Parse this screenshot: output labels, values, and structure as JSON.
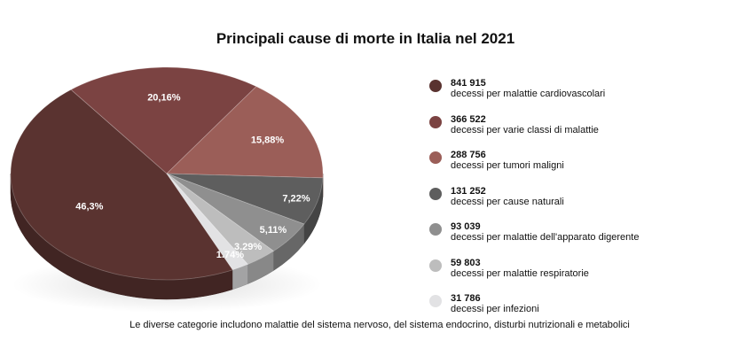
{
  "chart_data": {
    "type": "pie",
    "title": "Principali cause di morte in Italia nel 2021",
    "slices": [
      {
        "label": "46,3%",
        "value": 46.3,
        "color": "#5a3330",
        "count": "841 915",
        "description": "decessi per malattie cardiovascolari"
      },
      {
        "label": "20,16%",
        "value": 20.16,
        "color": "#7b4342",
        "count": "366 522",
        "description": "decessi per varie classi di malattie"
      },
      {
        "label": "15,88%",
        "value": 15.88,
        "color": "#9b5e58",
        "count": "288 756",
        "description": "decessi per tumori maligni"
      },
      {
        "label": "7,22%",
        "value": 7.22,
        "color": "#5e5e5e",
        "count": "131 252",
        "description": "decessi per cause naturali"
      },
      {
        "label": "5,11%",
        "value": 5.11,
        "color": "#8f8f8f",
        "count": "93 039",
        "description": "decessi per malattie dell'apparato digerente"
      },
      {
        "label": "3.29%",
        "value": 3.29,
        "color": "#bdbdbd",
        "count": "59 803",
        "description": "decessi per malattie respiratorie"
      },
      {
        "label": "1.74%",
        "value": 1.74,
        "color": "#e2e2e4",
        "count": "31 786",
        "description": "decessi per infezioni"
      }
    ],
    "legend_position": "right",
    "footnote": "Le diverse categorie includono malattie del sistema nervoso, del sistema endocrino, disturbi nutrizionali e metabolici"
  }
}
